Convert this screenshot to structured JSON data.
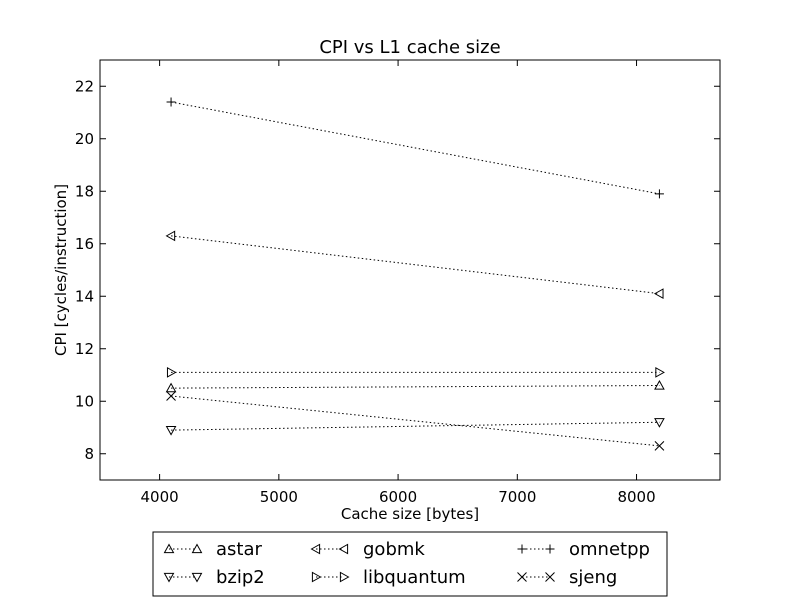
{
  "chart_data": {
    "type": "line",
    "title": "CPI vs L1 cache size",
    "xlabel": "Cache size [bytes]",
    "ylabel": "CPI [cycles/instruction]",
    "xlim": [
      3500,
      8700
    ],
    "ylim": [
      7,
      23
    ],
    "xticks": [
      4000,
      5000,
      6000,
      7000,
      8000
    ],
    "yticks": [
      8,
      10,
      12,
      14,
      16,
      18,
      20,
      22
    ],
    "grid": false,
    "legend_position": "bottom-center",
    "x": [
      4096,
      8192
    ],
    "series": [
      {
        "name": "astar",
        "marker": "triangle-up",
        "values": [
          10.5,
          10.6
        ]
      },
      {
        "name": "bzip2",
        "marker": "triangle-down",
        "values": [
          8.9,
          9.2
        ]
      },
      {
        "name": "gobmk",
        "marker": "triangle-left",
        "values": [
          16.3,
          14.1
        ]
      },
      {
        "name": "libquantum",
        "marker": "triangle-right",
        "values": [
          11.1,
          11.1
        ]
      },
      {
        "name": "omnetpp",
        "marker": "plus",
        "values": [
          21.4,
          17.9
        ]
      },
      {
        "name": "sjeng",
        "marker": "x",
        "values": [
          10.2,
          8.3
        ]
      }
    ],
    "line_color": "#000000",
    "line_style": "dotted"
  }
}
